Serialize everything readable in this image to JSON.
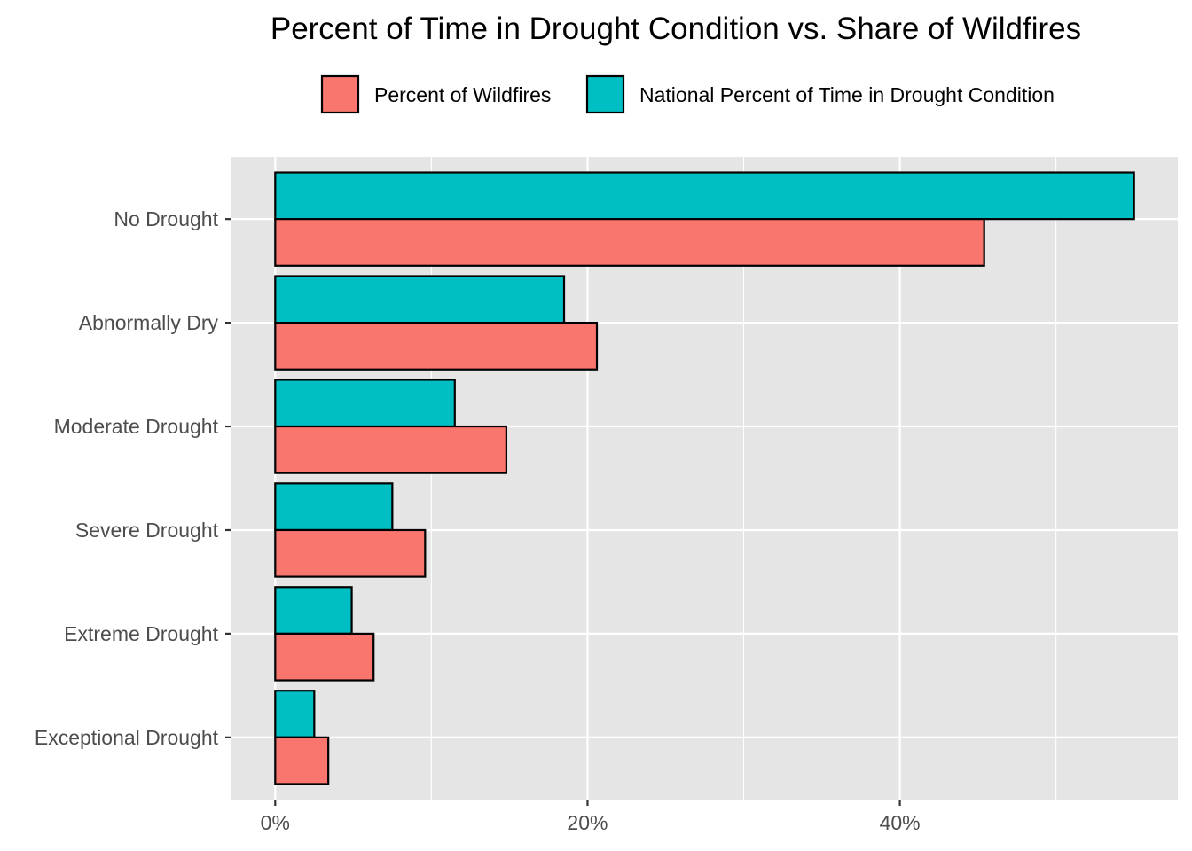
{
  "chart_data": {
    "type": "bar",
    "orientation": "horizontal",
    "title": "Percent of Time in Drought Condition vs. Share of Wildfires",
    "xlabel": "",
    "ylabel": "",
    "categories": [
      "No Drought",
      "Abnormally Dry",
      "Moderate Drought",
      "Severe Drought",
      "Extreme Drought",
      "Exceptional Drought"
    ],
    "series": [
      {
        "name": "Percent of Wildfires",
        "color": "#F8766D",
        "values": [
          45.4,
          20.6,
          14.8,
          9.6,
          6.3,
          3.4
        ]
      },
      {
        "name": "National Percent of Time in Drought Condition",
        "color": "#00BFC4",
        "values": [
          55.0,
          18.5,
          11.5,
          7.5,
          4.9,
          2.5
        ]
      }
    ],
    "xlim": [
      -2.8,
      57.8
    ],
    "x_ticks": [
      0,
      20,
      40
    ],
    "x_tick_labels": [
      "0%",
      "20%",
      "40%"
    ],
    "x_minor_ticks": [
      10,
      30,
      50
    ],
    "grid": true,
    "legend_position": "top",
    "panel_background": "#E5E5E5",
    "grid_color": "#FFFFFF",
    "bar_outline": "#000000"
  }
}
